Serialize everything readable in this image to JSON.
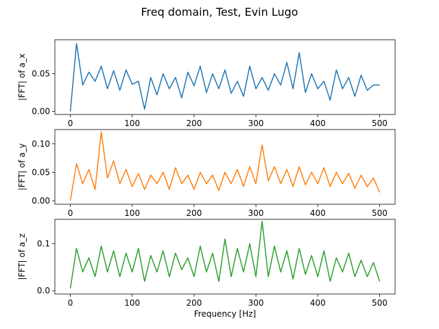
{
  "figure": {
    "title": "Freq domain, Test, Evin Lugo"
  },
  "chart_data": [
    {
      "type": "line",
      "title": "",
      "xlabel": "",
      "ylabel": "|FFT| of a_x",
      "color": "#1f77b4",
      "xlim": [
        -25,
        525
      ],
      "ylim": [
        -0.004,
        0.095
      ],
      "xticks": [
        0,
        100,
        200,
        300,
        400,
        500
      ],
      "xtick_labels": [
        "0",
        "100",
        "200",
        "300",
        "400",
        "500"
      ],
      "yticks": [
        0.0,
        0.05
      ],
      "ytick_labels": [
        "0.00",
        "0.05"
      ],
      "grid": false,
      "series": [
        {
          "x": [
            0,
            10,
            20,
            30,
            40,
            50,
            60,
            70,
            80,
            90,
            100,
            110,
            120,
            130,
            140,
            150,
            160,
            170,
            180,
            190,
            200,
            210,
            220,
            230,
            240,
            250,
            260,
            270,
            280,
            290,
            300,
            310,
            320,
            330,
            340,
            350,
            360,
            370,
            380,
            390,
            400,
            410,
            420,
            430,
            440,
            450,
            460,
            470,
            480,
            490,
            500
          ],
          "values": [
            0.0,
            0.09,
            0.035,
            0.052,
            0.04,
            0.06,
            0.03,
            0.054,
            0.028,
            0.055,
            0.036,
            0.04,
            0.003,
            0.045,
            0.022,
            0.05,
            0.03,
            0.045,
            0.018,
            0.052,
            0.034,
            0.06,
            0.025,
            0.05,
            0.03,
            0.055,
            0.024,
            0.04,
            0.02,
            0.06,
            0.03,
            0.045,
            0.028,
            0.05,
            0.035,
            0.065,
            0.03,
            0.078,
            0.025,
            0.05,
            0.03,
            0.04,
            0.015,
            0.055,
            0.03,
            0.045,
            0.02,
            0.048,
            0.028,
            0.035,
            0.035
          ]
        }
      ]
    },
    {
      "type": "line",
      "title": "",
      "xlabel": "",
      "ylabel": "|FFT| of a_y",
      "color": "#ff7f0e",
      "xlim": [
        -25,
        525
      ],
      "ylim": [
        -0.006,
        0.125
      ],
      "xticks": [
        0,
        100,
        200,
        300,
        400,
        500
      ],
      "xtick_labels": [
        "0",
        "100",
        "200",
        "300",
        "400",
        "500"
      ],
      "yticks": [
        0.0,
        0.05,
        0.1
      ],
      "ytick_labels": [
        "0.00",
        "0.05",
        "0.10"
      ],
      "grid": false,
      "series": [
        {
          "x": [
            0,
            10,
            20,
            30,
            40,
            50,
            60,
            70,
            80,
            90,
            100,
            110,
            120,
            130,
            140,
            150,
            160,
            170,
            180,
            190,
            200,
            210,
            220,
            230,
            240,
            250,
            260,
            270,
            280,
            290,
            300,
            310,
            320,
            330,
            340,
            350,
            360,
            370,
            380,
            390,
            400,
            410,
            420,
            430,
            440,
            450,
            460,
            470,
            480,
            490,
            500
          ],
          "values": [
            0.0,
            0.065,
            0.03,
            0.055,
            0.02,
            0.121,
            0.04,
            0.07,
            0.03,
            0.055,
            0.025,
            0.048,
            0.02,
            0.045,
            0.03,
            0.05,
            0.02,
            0.058,
            0.03,
            0.045,
            0.02,
            0.05,
            0.03,
            0.045,
            0.018,
            0.05,
            0.03,
            0.055,
            0.025,
            0.06,
            0.03,
            0.098,
            0.035,
            0.06,
            0.03,
            0.055,
            0.025,
            0.06,
            0.028,
            0.05,
            0.03,
            0.058,
            0.025,
            0.05,
            0.03,
            0.048,
            0.022,
            0.045,
            0.025,
            0.04,
            0.015
          ]
        }
      ]
    },
    {
      "type": "line",
      "title": "",
      "xlabel": "Frequency [Hz]",
      "ylabel": "|FFT| of a_z",
      "color": "#2ca02c",
      "xlim": [
        -25,
        525
      ],
      "ylim": [
        -0.007,
        0.152
      ],
      "xticks": [
        0,
        100,
        200,
        300,
        400,
        500
      ],
      "xtick_labels": [
        "0",
        "100",
        "200",
        "300",
        "400",
        "500"
      ],
      "yticks": [
        0.0,
        0.1
      ],
      "ytick_labels": [
        "0.0",
        "0.1"
      ],
      "grid": false,
      "series": [
        {
          "x": [
            0,
            10,
            20,
            30,
            40,
            50,
            60,
            70,
            80,
            90,
            100,
            110,
            120,
            130,
            140,
            150,
            160,
            170,
            180,
            190,
            200,
            210,
            220,
            230,
            240,
            250,
            260,
            270,
            280,
            290,
            300,
            310,
            320,
            330,
            340,
            350,
            360,
            370,
            380,
            390,
            400,
            410,
            420,
            430,
            440,
            450,
            460,
            470,
            480,
            490,
            500
          ],
          "values": [
            0.005,
            0.09,
            0.04,
            0.07,
            0.03,
            0.095,
            0.04,
            0.085,
            0.03,
            0.08,
            0.04,
            0.09,
            0.02,
            0.075,
            0.04,
            0.085,
            0.03,
            0.08,
            0.045,
            0.07,
            0.03,
            0.095,
            0.04,
            0.08,
            0.02,
            0.11,
            0.03,
            0.09,
            0.04,
            0.1,
            0.03,
            0.148,
            0.03,
            0.095,
            0.04,
            0.085,
            0.025,
            0.09,
            0.035,
            0.075,
            0.03,
            0.085,
            0.02,
            0.07,
            0.04,
            0.08,
            0.03,
            0.065,
            0.03,
            0.06,
            0.02
          ]
        }
      ]
    }
  ]
}
